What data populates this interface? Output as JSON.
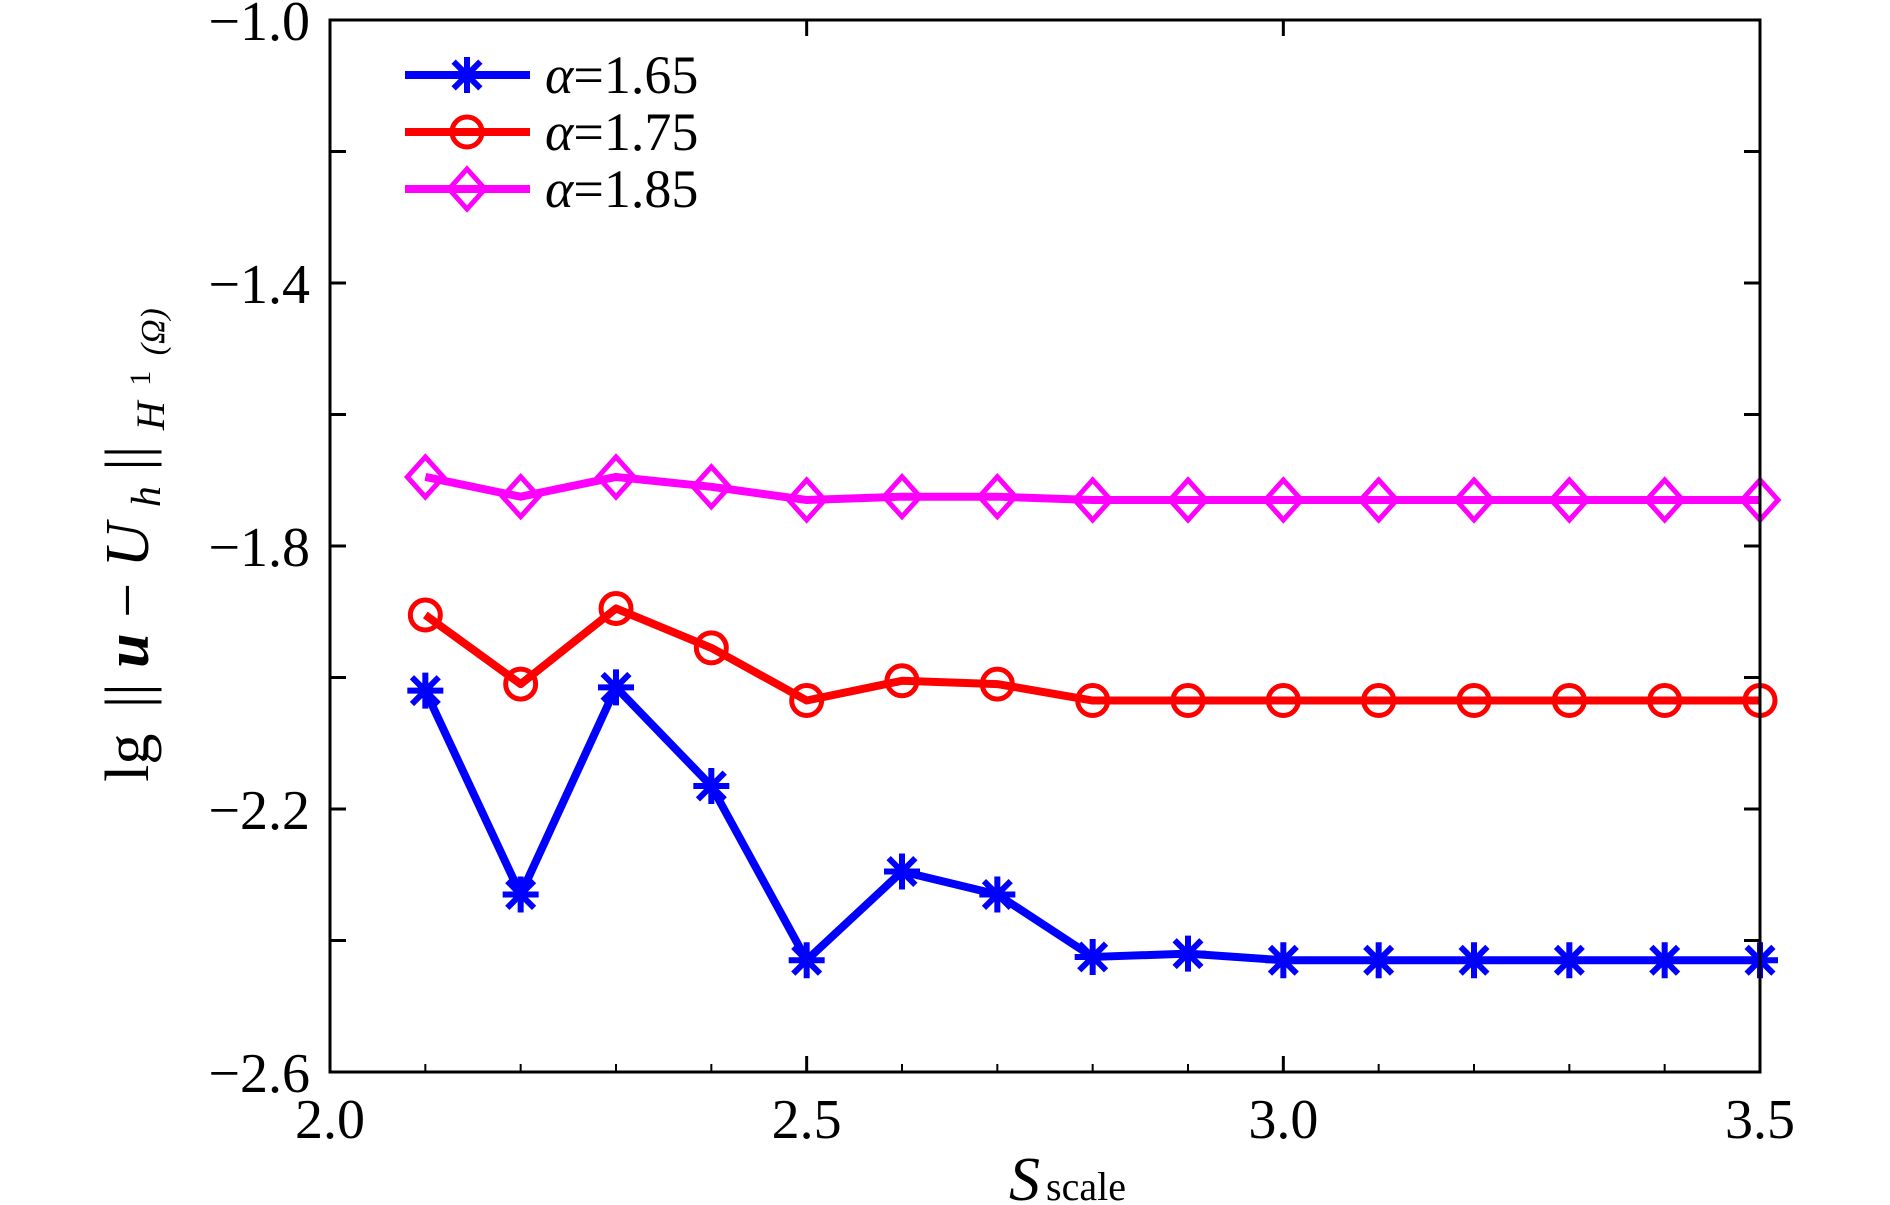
{
  "chart_data": {
    "type": "line",
    "x": [
      2.1,
      2.2,
      2.3,
      2.4,
      2.5,
      2.6,
      2.7,
      2.8,
      2.9,
      3.0,
      3.1,
      3.2,
      3.3,
      3.4,
      3.5
    ],
    "series": [
      {
        "name": "α=1.65",
        "color": "#0000ff",
        "marker": "star",
        "values": [
          -2.02,
          -2.33,
          -2.015,
          -2.165,
          -2.43,
          -2.295,
          -2.33,
          -2.425,
          -2.42,
          -2.43,
          -2.43,
          -2.43,
          -2.43,
          -2.43,
          -2.43
        ]
      },
      {
        "name": "α=1.75",
        "color": "#ff0000",
        "marker": "circle",
        "values": [
          -1.905,
          -2.01,
          -1.895,
          -1.955,
          -2.035,
          -2.005,
          -2.01,
          -2.035,
          -2.035,
          -2.035,
          -2.035,
          -2.035,
          -2.035,
          -2.035,
          -2.035
        ]
      },
      {
        "name": "α=1.85",
        "color": "#ff00ff",
        "marker": "diamond",
        "values": [
          -1.695,
          -1.725,
          -1.695,
          -1.71,
          -1.73,
          -1.725,
          -1.725,
          -1.73,
          -1.73,
          -1.73,
          -1.73,
          -1.73,
          -1.73,
          -1.73,
          -1.73
        ]
      }
    ],
    "xlim": [
      2.0,
      3.5
    ],
    "ylim": [
      -2.6,
      -1.0
    ],
    "xticks": [
      "2.0",
      "2.5",
      "3.0",
      "3.5"
    ],
    "yticks": [
      "−2.6",
      "−2.2",
      "−1.8",
      "−1.4",
      "−1.0"
    ],
    "xlabel": {
      "main": "S",
      "sub": "scale"
    },
    "ylabel": {
      "prefix": "lg",
      "norm_open": "||",
      "u": "u",
      "minus": "−",
      "U": "U",
      "h": "h",
      "norm_close": "||",
      "sub_H": "H",
      "sup_1": "1",
      "sub_omega": "(Ω)"
    },
    "legend_position": "top-left",
    "grid": false
  }
}
